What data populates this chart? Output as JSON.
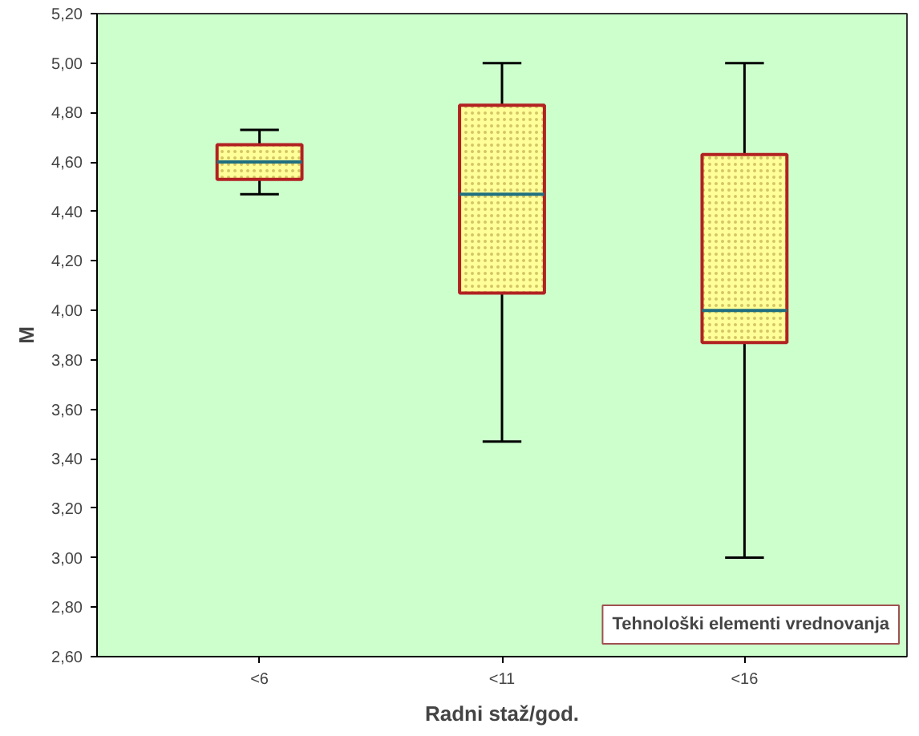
{
  "chart_data": {
    "type": "box",
    "xlabel": "Radni staž/god.",
    "ylabel": "M",
    "categories": [
      "<6",
      "<11",
      "<16"
    ],
    "series": [
      {
        "color": "#ffff99",
        "boxes": [
          {
            "low": 4.47,
            "q1": 4.53,
            "median": 4.6,
            "q3": 4.67,
            "high": 4.73
          },
          {
            "low": 3.47,
            "q1": 4.07,
            "median": 4.47,
            "q3": 4.83,
            "high": 5.0
          },
          {
            "low": 3.0,
            "q1": 3.87,
            "median": 4.0,
            "q3": 4.63,
            "high": 5.0
          }
        ]
      }
    ],
    "ylim": [
      2.6,
      5.2
    ],
    "yticks": [
      {
        "value": 2.6,
        "label": "2,60"
      },
      {
        "value": 2.8,
        "label": "2,80"
      },
      {
        "value": 3.0,
        "label": "3,00"
      },
      {
        "value": 3.2,
        "label": "3,20"
      },
      {
        "value": 3.4,
        "label": "3,40"
      },
      {
        "value": 3.6,
        "label": "3,60"
      },
      {
        "value": 3.8,
        "label": "3,80"
      },
      {
        "value": 4.0,
        "label": "4,00"
      },
      {
        "value": 4.2,
        "label": "4,20"
      },
      {
        "value": 4.4,
        "label": "4,40"
      },
      {
        "value": 4.6,
        "label": "4,60"
      },
      {
        "value": 4.8,
        "label": "4,80"
      },
      {
        "value": 5.0,
        "label": "5,00"
      },
      {
        "value": 5.2,
        "label": "5,20"
      }
    ],
    "annotations": [
      "Tehnološki elementi vrednovanja"
    ],
    "grid": false
  }
}
